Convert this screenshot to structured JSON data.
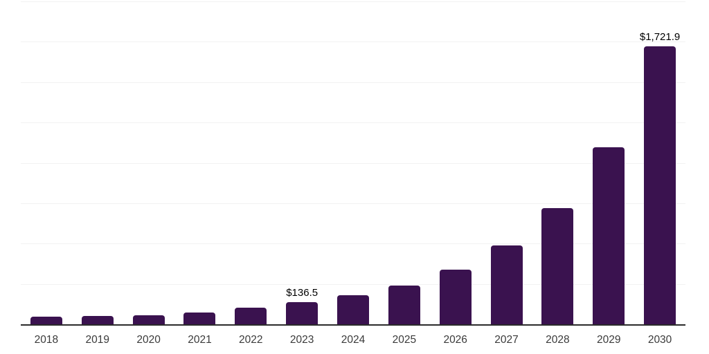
{
  "chart_data": {
    "type": "bar",
    "title": "",
    "xlabel": "",
    "ylabel": "",
    "categories": [
      "2018",
      "2019",
      "2020",
      "2021",
      "2022",
      "2023",
      "2024",
      "2025",
      "2026",
      "2027",
      "2028",
      "2029",
      "2030"
    ],
    "values": [
      45,
      51,
      57,
      73,
      101,
      136.5,
      180,
      240,
      338,
      488,
      719,
      1096,
      1721.9
    ],
    "value_labels": [
      {
        "category": "2023",
        "text": "$136.5"
      },
      {
        "category": "2030",
        "text": "$1,721.9"
      }
    ],
    "ylim": [
      0,
      2000
    ],
    "grid_step": 250,
    "grid": "horizontal",
    "legend": "none",
    "colors": {
      "bar": "#3a124f",
      "axis_line": "#2b2b2b",
      "gridline": "#f2f2f2",
      "tick_label": "#3a3a3a",
      "value_label": "#000000",
      "background": "#ffffff"
    }
  }
}
